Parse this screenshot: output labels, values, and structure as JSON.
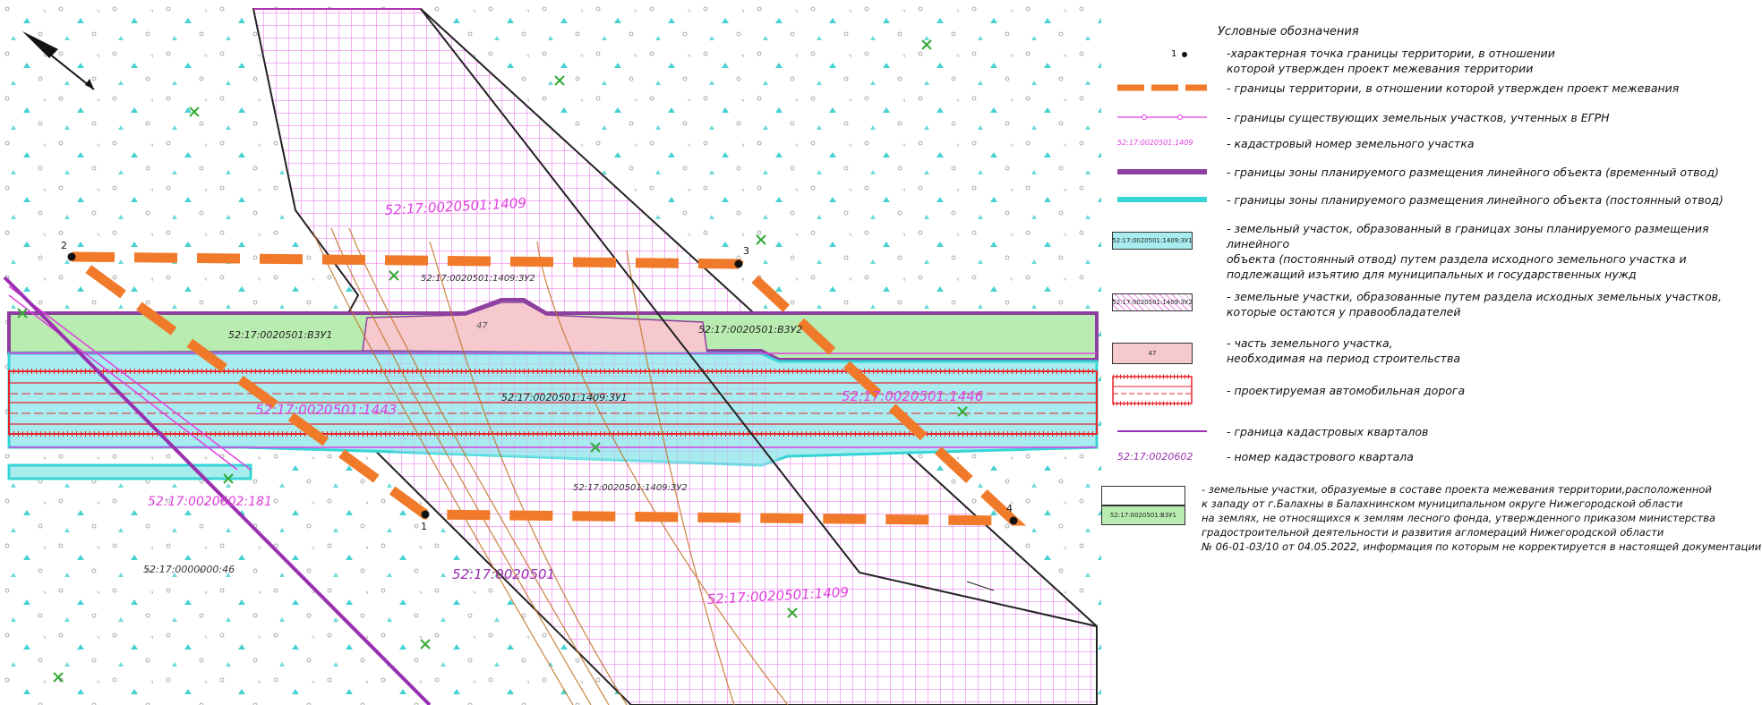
{
  "map": {
    "labels": {
      "parcel_top": "52:17:0020501:1409",
      "zu2_top": "52:17:0020501:1409:ЗУ2",
      "b3u1": "52:17:0020501:B3У1",
      "b3u2": "52:17:0020501:B3У2",
      "part_47": "47",
      "zu1": "52:17:0020501:1409:ЗУ1",
      "parcel_1443": "52:17:0020501:1443",
      "parcel_1446": "52:17:0020501:1446",
      "parcel_181": "52:17:0020602:181",
      "zu2_bottom": "52:17:0020501:1409:ЗУ2",
      "quarter": "52:17:0020501",
      "forest": "52:17:0000000:46",
      "parcel_bottom": "52:17:0020501:1409",
      "pt1": "1",
      "pt2": "2",
      "pt3": "3",
      "pt4": "4"
    },
    "colors": {
      "boundary": "#f07a2a",
      "parcel_line": "#e040e0",
      "temporary": "#8e3fa0",
      "permanent": "#35d5d5",
      "road": "#e8232a",
      "quarter_line": "#9a30b0",
      "green_fill": "#b9ecb0",
      "cyan_fill": "#a8ecf0",
      "pink_fill": "#f6c9cf",
      "hatch": "#ee66ee"
    }
  },
  "legend": {
    "title": "Условные обозначения",
    "items": [
      {
        "symbol_label": "1",
        "text": "-характерная точка границы территории, в отношении\n которой утвержден проект межевания территории"
      },
      {
        "text": "- границы территории, в отношении которой утвержден проект межевания"
      },
      {
        "text": "- границы существующих земельных участков, учтенных в ЕГРН"
      },
      {
        "symbol_label": "52:17:0020501:1409",
        "text": "- кадастровый номер земельного участка"
      },
      {
        "text": "- границы зоны планируемого размещения линейного объекта (временный отвод)"
      },
      {
        "text": "- границы зоны планируемого размещения линейного объекта (постоянный отвод)"
      },
      {
        "symbol_label": "52:17:0020501:1409:ЗУ1",
        "text": "- земельный участок, образованный в границах зоны планируемого размещения линейного\nобъекта (постоянный отвод) путем раздела исходного земельного участка и\nподлежащий изъятию для муниципальных и государственных нужд"
      },
      {
        "symbol_label": "52:17:0020501:1409:ЗУ2",
        "text": "- земельные участки, образованные путем раздела исходных земельных участков,\nкоторые остаются у правообладателей"
      },
      {
        "symbol_label": "47",
        "text": "- часть земельного участка,\nнеобходимая на период строительства"
      },
      {
        "text": "- проектируемая автомобильная дорога"
      },
      {
        "text": "- граница кадастровых кварталов"
      },
      {
        "symbol_label": "52:17:0020602",
        "text": "- номер кадастрового квартала"
      },
      {
        "symbol_label": "52:17:0020501:В3У1",
        "text": "- земельные участки, образуемые в составе проекта межевания территории,расположенной\nк западу от г.Балахны в Балахнинском муниципальном округе Нижегородской области\nна землях, не относящихся к землям лесного фонда, утвержденного приказом министерства\nградостроительной деятельности и развития агломераций Нижегородской области\n№ 06-01-03/10 от 04.05.2022, информация по которым не корректируется в настоящей документации"
      }
    ]
  }
}
